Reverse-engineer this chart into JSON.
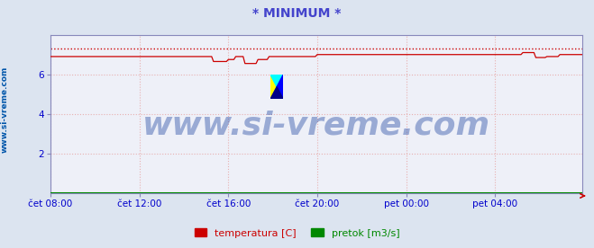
{
  "title": "* MINIMUM *",
  "title_color": "#4444cc",
  "bg_color": "#dce4f0",
  "plot_bg_color": "#eef0f8",
  "grid_color": "#e8b0b0",
  "border_color": "#8888bb",
  "tick_color": "#0000cc",
  "ylabel_side_text": "www.si-vreme.com",
  "ylabel_side_color": "#0055aa",
  "x_tick_labels": [
    "čet 08:00",
    "čet 12:00",
    "čet 16:00",
    "čet 20:00",
    "pet 00:00",
    "pet 04:00"
  ],
  "x_tick_positions": [
    0,
    48,
    96,
    144,
    192,
    240
  ],
  "ylim": [
    0,
    8
  ],
  "yticks": [
    2,
    4,
    6
  ],
  "total_points": 288,
  "temp_dotted_y": 7.3,
  "temp_color": "#cc0000",
  "pretok_color": "#008800",
  "legend_temp_label": "temperatura [C]",
  "legend_pretok_label": "pretok [m3/s]",
  "watermark_text": "www.si-vreme.com",
  "watermark_color": "#3355aa",
  "watermark_fontsize": 26,
  "watermark_alpha": 0.45
}
